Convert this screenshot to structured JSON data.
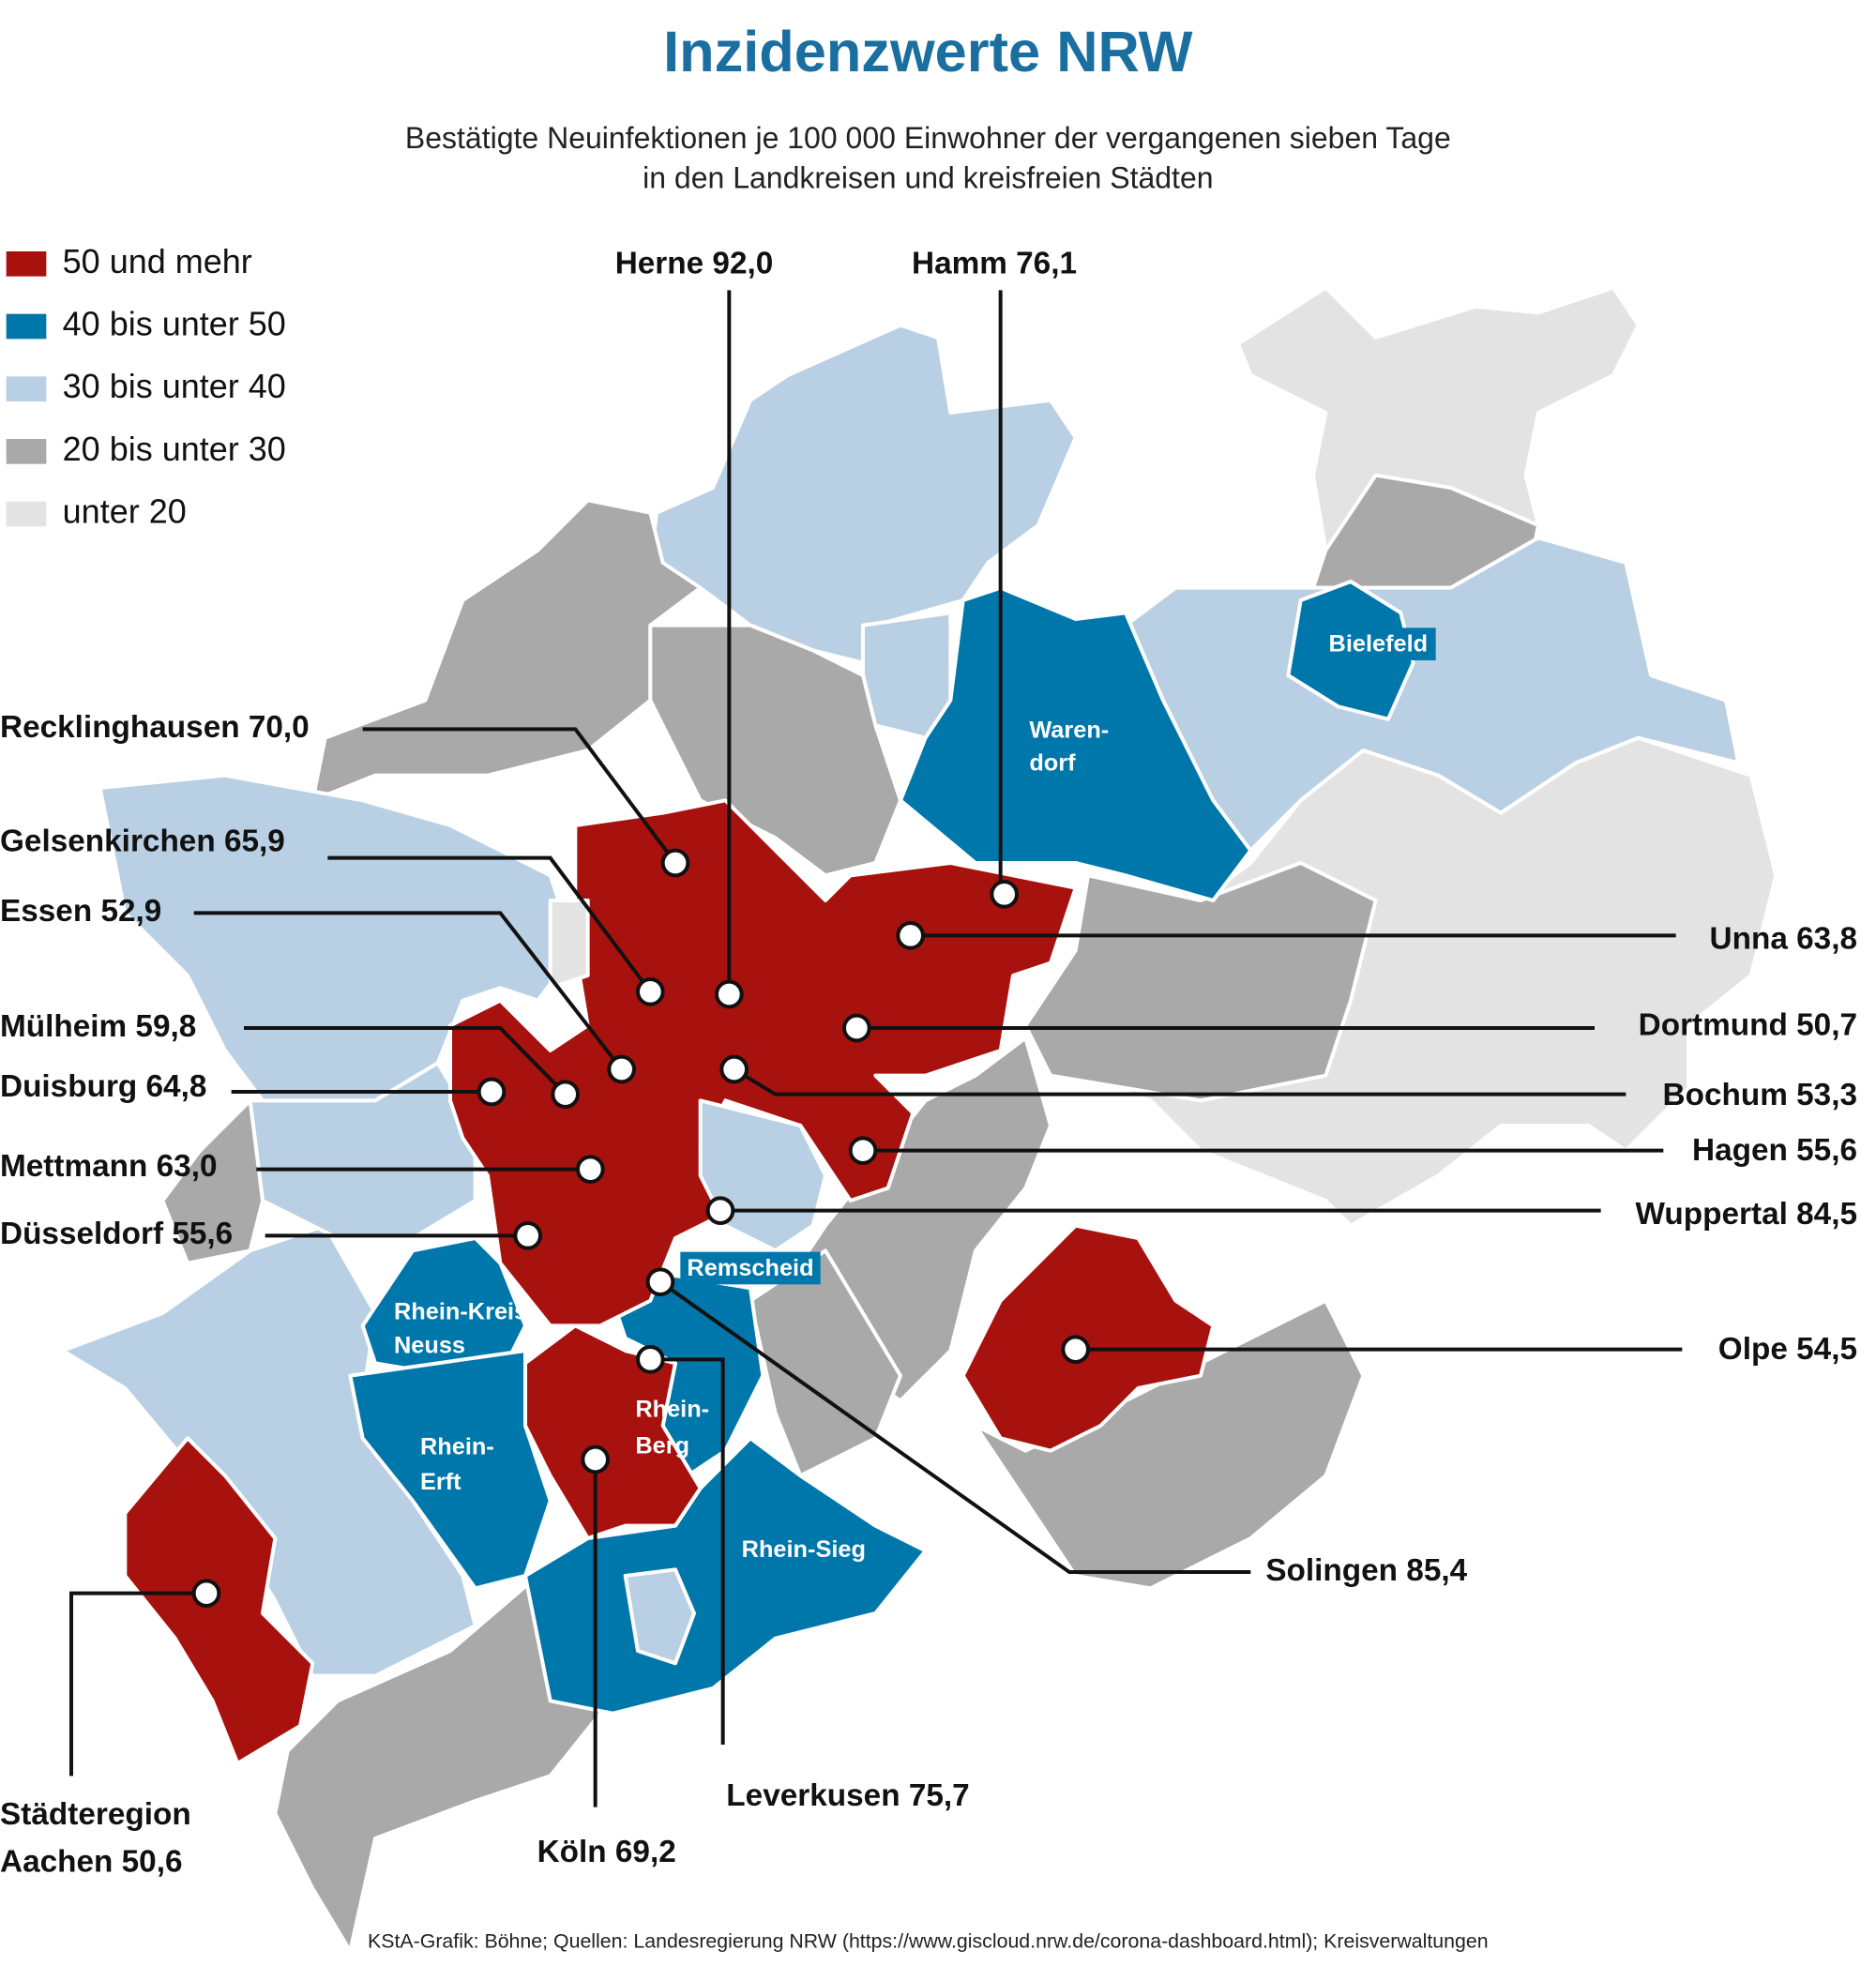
{
  "title": "Inzidenzwerte NRW",
  "subtitle": [
    "Bestätigte Neuinfektionen je 100 000 Einwohner der vergangenen sieben Tage",
    "in den Landkreisen und kreisfreien Städten"
  ],
  "legend": [
    "50 und mehr",
    "40 bis unter 50",
    "30 bis unter 40",
    "20 bis unter 30",
    "unter 20"
  ],
  "callouts": [
    "Herne 92,0",
    "Hamm 76,1",
    "Recklinghausen 70,0",
    "Gelsenkirchen 65,9",
    "Essen 52,9",
    "Mülheim 59,8",
    "Duisburg 64,8",
    "Mettmann 63,0",
    "Düsseldorf 55,6",
    "Unna 63,8",
    "Dortmund 50,7",
    "Bochum 53,3",
    "Hagen 55,6",
    "Wuppertal 84,5",
    "Olpe 54,5",
    "Solingen 85,4",
    "Leverkusen 75,7",
    "Köln 69,2"
  ],
  "aachen_callout": [
    "Städteregion",
    "Aachen 50,6"
  ],
  "map_labels": {
    "bielefeld": "Bielefeld",
    "warendorf": [
      "Waren-",
      "dorf"
    ],
    "remscheid": "Remscheid",
    "neuss": [
      "Rhein-Kreis",
      "Neuss"
    ],
    "erft": [
      "Rhein-",
      "Erft"
    ],
    "berg": [
      "Rhein-",
      "Berg"
    ],
    "sieg": "Rhein-Sieg"
  },
  "source": "KStA-Grafik: Böhne; Quellen: Landesregierung NRW (https://www.giscloud.nrw.de/corona-dashboard.html); Kreisverwaltungen"
}
